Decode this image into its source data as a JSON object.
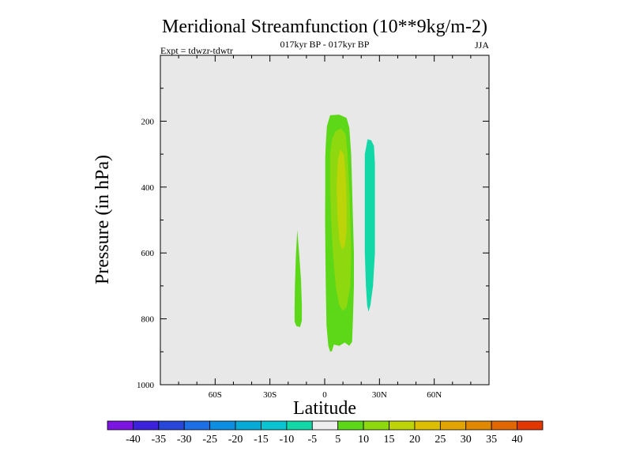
{
  "chart_data": {
    "type": "contour",
    "title": "Meridional Streamfunction (10**9kg/m-2)",
    "subtitle": "017kyr BP - 017kyr BP",
    "left_label": "Expt = tdwzr-tdwtr",
    "right_label": "JJA",
    "xlabel": "Latitude",
    "ylabel": "Pressure (in hPa)",
    "xlim": [
      -90,
      90
    ],
    "ylim": [
      1000,
      0
    ],
    "x_ticks": [
      {
        "value": -60,
        "label": "60S"
      },
      {
        "value": -30,
        "label": "30S"
      },
      {
        "value": 0,
        "label": "0"
      },
      {
        "value": 30,
        "label": "30N"
      },
      {
        "value": 60,
        "label": "60N"
      }
    ],
    "y_ticks": [
      {
        "value": 200,
        "label": "200"
      },
      {
        "value": 400,
        "label": "400"
      },
      {
        "value": 600,
        "label": "600"
      },
      {
        "value": 800,
        "label": "800"
      },
      {
        "value": 1000,
        "label": "1000"
      }
    ],
    "background_color": "#e8e8e8",
    "colorbar": {
      "labels": [
        "-40",
        "-35",
        "-30",
        "-25",
        "-20",
        "-15",
        "-10",
        "-5",
        "5",
        "10",
        "15",
        "20",
        "25",
        "30",
        "35",
        "40"
      ],
      "colors": [
        "#7b16e0",
        "#3d22dc",
        "#2846d8",
        "#1e6ee4",
        "#0e8ee0",
        "#06aad4",
        "#0ac4d2",
        "#12d8a8",
        "#eeeeee",
        "#5cd818",
        "#8ed810",
        "#bcd408",
        "#dcc000",
        "#e2a400",
        "#e08800",
        "#e06800",
        "#e03800"
      ]
    },
    "regions": [
      {
        "level": "5 to 10",
        "color": "#5cd818",
        "points": [
          [
            -15,
            530
          ],
          [
            -14,
            600
          ],
          [
            -13,
            680
          ],
          [
            -12.5,
            760
          ],
          [
            -12.5,
            805
          ],
          [
            -13.5,
            825
          ],
          [
            -15.5,
            822
          ],
          [
            -16.5,
            808
          ],
          [
            -16.5,
            770
          ],
          [
            -16.3,
            700
          ],
          [
            -15.8,
            610
          ]
        ]
      },
      {
        "level": "5 to 10",
        "color": "#5cd818",
        "points": [
          [
            3,
            182
          ],
          [
            8,
            180
          ],
          [
            12,
            190
          ],
          [
            13.5,
            220
          ],
          [
            14.5,
            300
          ],
          [
            15,
            400
          ],
          [
            15.5,
            500
          ],
          [
            16,
            600
          ],
          [
            16,
            700
          ],
          [
            15.5,
            800
          ],
          [
            15,
            870
          ],
          [
            13.5,
            882
          ],
          [
            11,
            872
          ],
          [
            8,
            882
          ],
          [
            5,
            878
          ],
          [
            4,
            898
          ],
          [
            3,
            900
          ],
          [
            2,
            882
          ],
          [
            1,
            820
          ],
          [
            0.6,
            700
          ],
          [
            0.4,
            600
          ],
          [
            0.2,
            500
          ],
          [
            0.3,
            400
          ],
          [
            0.3,
            310
          ],
          [
            0.6,
            270
          ],
          [
            1.2,
            215
          ]
        ]
      },
      {
        "level": "10 to 15",
        "color": "#8ed810",
        "points": [
          [
            6,
            230
          ],
          [
            9,
            222
          ],
          [
            11.5,
            240
          ],
          [
            12.5,
            300
          ],
          [
            13.5,
            400
          ],
          [
            14,
            500
          ],
          [
            14.5,
            600
          ],
          [
            14,
            700
          ],
          [
            12,
            765
          ],
          [
            10,
            775
          ],
          [
            8,
            760
          ],
          [
            6,
            700
          ],
          [
            4.5,
            600
          ],
          [
            3.5,
            500
          ],
          [
            3,
            400
          ],
          [
            3,
            300
          ],
          [
            4,
            255
          ]
        ]
      },
      {
        "level": "15 to 20",
        "color": "#bcd408",
        "points": [
          [
            8.5,
            285
          ],
          [
            10.5,
            300
          ],
          [
            11.5,
            360
          ],
          [
            12,
            450
          ],
          [
            12,
            530
          ],
          [
            11,
            580
          ],
          [
            9.5,
            590
          ],
          [
            8,
            560
          ],
          [
            7,
            490
          ],
          [
            6.5,
            400
          ],
          [
            7.2,
            320
          ]
        ]
      },
      {
        "level": "-10 to -5",
        "color": "#12d8a8",
        "points": [
          [
            23.5,
            255
          ],
          [
            25.5,
            258
          ],
          [
            27,
            275
          ],
          [
            27.5,
            330
          ],
          [
            27.5,
            400
          ],
          [
            27.5,
            500
          ],
          [
            27.5,
            600
          ],
          [
            26.5,
            700
          ],
          [
            25,
            760
          ],
          [
            24,
            778
          ],
          [
            23.3,
            760
          ],
          [
            22.6,
            700
          ],
          [
            22,
            600
          ],
          [
            22,
            500
          ],
          [
            22,
            400
          ],
          [
            22,
            300
          ]
        ]
      }
    ]
  }
}
